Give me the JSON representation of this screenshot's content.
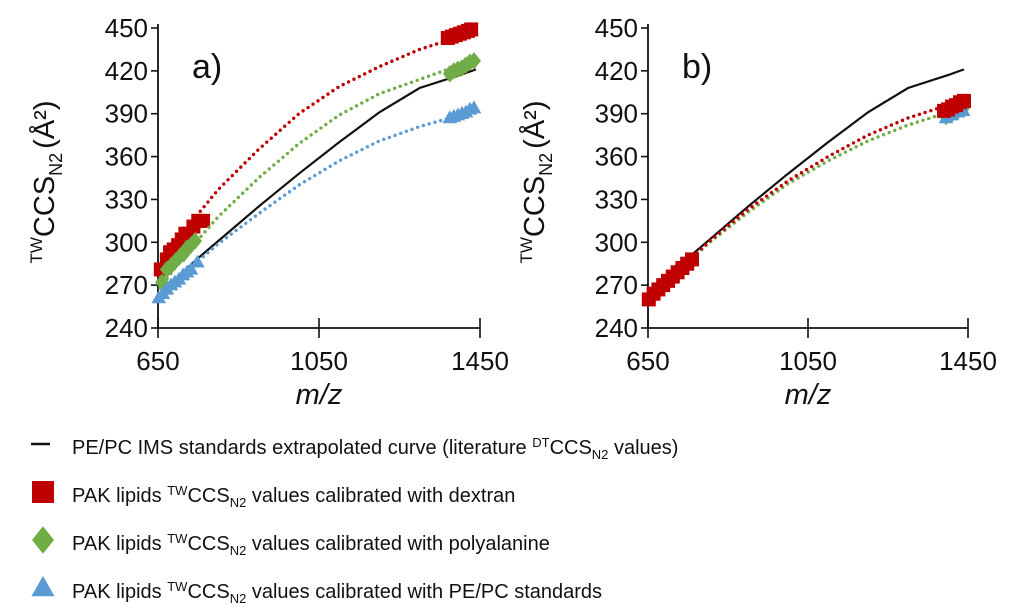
{
  "chart_data": [
    {
      "panel_label": "a)",
      "type": "scatter",
      "ylabel": {
        "prefix": "TW",
        "main": "CCS",
        "sub": "N2",
        "unit": "(Å²)"
      },
      "xlabel": "m/z",
      "xlim": [
        650,
        1450
      ],
      "ylim": [
        240,
        450
      ],
      "x_ticks": [
        650,
        1050,
        1450
      ],
      "y_ticks": [
        240,
        270,
        300,
        330,
        360,
        390,
        420,
        450
      ],
      "series": [
        {
          "name": "PE/PC IMS standards extrapolated curve (literature DTCCSN2 values)",
          "kind": "line",
          "color": "#111111",
          "x": [
            650,
            700,
            750,
            800,
            900,
            1000,
            1100,
            1200,
            1300,
            1400,
            1440
          ],
          "y": [
            263,
            276,
            289,
            301,
            325,
            348,
            370,
            391,
            408,
            417,
            421
          ]
        },
        {
          "name": "PAK lipids TWCCSN2 values calibrated with dextran",
          "kind": "markers",
          "marker": "square",
          "color": "#c00000",
          "x": [
            657,
            672,
            680,
            689,
            700,
            709,
            718,
            726,
            738,
            750,
            762,
            1370,
            1380,
            1390,
            1400,
            1410,
            1420,
            1428
          ],
          "y": [
            281,
            288,
            293,
            295,
            298,
            302,
            306,
            306,
            311,
            315,
            315,
            443,
            444,
            445,
            446,
            447,
            448,
            449
          ]
        },
        {
          "name": "PAK lipids TWCCSN2 values calibrated with dextran",
          "kind": "trend",
          "color": "#c00000",
          "x": [
            655,
            700,
            750,
            800,
            900,
            1000,
            1100,
            1200,
            1300,
            1400,
            1430
          ],
          "y": [
            280,
            300,
            320,
            337,
            365,
            390,
            409,
            423,
            435,
            444,
            447
          ]
        },
        {
          "name": "PAK lipids TWCCSN2 values calibrated with polyalanine",
          "kind": "markers",
          "marker": "diamond",
          "color": "#70ad47",
          "x": [
            660,
            672,
            684,
            694,
            704,
            714,
            722,
            732,
            742,
            1375,
            1385,
            1395,
            1405,
            1415,
            1425,
            1435
          ],
          "y": [
            272,
            281,
            284,
            287,
            290,
            292,
            296,
            298,
            301,
            418,
            420,
            421,
            422,
            424,
            426,
            427
          ]
        },
        {
          "name": "PAK lipids TWCCSN2 values calibrated with polyalanine",
          "kind": "trend",
          "color": "#70ad47",
          "x": [
            655,
            700,
            750,
            800,
            900,
            1000,
            1100,
            1200,
            1300,
            1400,
            1435
          ],
          "y": [
            268,
            285,
            302,
            318,
            345,
            369,
            389,
            404,
            414,
            424,
            427
          ]
        },
        {
          "name": "PAK lipids TWCCSN2 values calibrated with PE/PC standards",
          "kind": "markers",
          "marker": "triangle",
          "color": "#5b9bd5",
          "x": [
            652,
            662,
            672,
            682,
            692,
            702,
            712,
            722,
            732,
            748,
            1375,
            1385,
            1395,
            1405,
            1415,
            1425,
            1435
          ],
          "y": [
            261,
            264,
            267,
            270,
            272,
            274,
            277,
            279,
            281,
            286,
            387,
            388,
            389,
            390,
            391,
            393,
            394
          ]
        },
        {
          "name": "PAK lipids TWCCSN2 values calibrated with PE/PC standards",
          "kind": "trend",
          "color": "#5b9bd5",
          "x": [
            655,
            700,
            750,
            800,
            900,
            1000,
            1100,
            1200,
            1300,
            1400,
            1435
          ],
          "y": [
            261,
            275,
            287,
            299,
            320,
            340,
            357,
            371,
            381,
            389,
            393
          ]
        }
      ]
    },
    {
      "panel_label": "b)",
      "type": "scatter",
      "ylabel": {
        "prefix": "TW",
        "main": "CCS",
        "sub": "N2",
        "unit": "(Å²)"
      },
      "xlabel": "m/z",
      "xlim": [
        650,
        1450
      ],
      "ylim": [
        240,
        450
      ],
      "x_ticks": [
        650,
        1050,
        1450
      ],
      "y_ticks": [
        240,
        270,
        300,
        330,
        360,
        390,
        420,
        450
      ],
      "series": [
        {
          "name": "PE/PC IMS standards extrapolated curve (literature DTCCSN2 values)",
          "kind": "line",
          "color": "#111111",
          "x": [
            650,
            700,
            750,
            800,
            900,
            1000,
            1100,
            1200,
            1300,
            1400,
            1440
          ],
          "y": [
            263,
            276,
            289,
            301,
            325,
            348,
            370,
            391,
            408,
            417,
            421
          ]
        },
        {
          "name": "PAK lipids TWCCSN2 values calibrated with polyalanine",
          "kind": "markers",
          "marker": "diamond",
          "color": "#70ad47",
          "x": [
            660,
            680,
            700,
            720,
            740,
            1395,
            1410,
            1425,
            1438
          ],
          "y": [
            263,
            268,
            274,
            279,
            284,
            388,
            390,
            392,
            394
          ]
        },
        {
          "name": "PAK lipids TWCCSN2 values calibrated with polyalanine",
          "kind": "trend",
          "color": "#70ad47",
          "x": [
            655,
            700,
            800,
            900,
            1000,
            1100,
            1200,
            1300,
            1400,
            1440
          ],
          "y": [
            260,
            273,
            299,
            321,
            341,
            357,
            371,
            382,
            391,
            395
          ]
        },
        {
          "name": "PAK lipids TWCCSN2 values calibrated with PE/PC standards",
          "kind": "markers",
          "marker": "triangle",
          "color": "#5b9bd5",
          "x": [
            1395,
            1410,
            1425,
            1438
          ],
          "y": [
            387,
            389,
            391,
            392
          ]
        },
        {
          "name": "PAK lipids TWCCSN2 values calibrated with dextran",
          "kind": "markers",
          "marker": "square",
          "color": "#c00000",
          "x": [
            652,
            664,
            676,
            688,
            700,
            712,
            724,
            736,
            748,
            760,
            1390,
            1400,
            1410,
            1420,
            1430,
            1440
          ],
          "y": [
            260,
            264,
            267,
            270,
            273,
            276,
            279,
            282,
            285,
            288,
            392,
            393,
            395,
            396,
            398,
            399
          ]
        },
        {
          "name": "PAK lipids TWCCSN2 values calibrated with dextran",
          "kind": "trend",
          "color": "#c00000",
          "x": [
            655,
            700,
            800,
            900,
            1000,
            1100,
            1200,
            1300,
            1400,
            1440
          ],
          "y": [
            260,
            273,
            300,
            323,
            343,
            360,
            375,
            387,
            396,
            400
          ]
        }
      ]
    }
  ],
  "legend": [
    {
      "marker": "line",
      "color": "#111111",
      "before": "PE/PC IMS standards extrapolated curve (literature ",
      "sup": "DT",
      "mid": "CCS",
      "sub": "N2",
      "after": " values)"
    },
    {
      "marker": "square",
      "color": "#c00000",
      "before": "PAK lipids ",
      "sup": "TW",
      "mid": "CCS",
      "sub": "N2",
      "after": " values calibrated with dextran"
    },
    {
      "marker": "diamond",
      "color": "#70ad47",
      "before": "PAK lipids ",
      "sup": "TW",
      "mid": "CCS",
      "sub": "N2",
      "after": " values calibrated with polyalanine"
    },
    {
      "marker": "triangle",
      "color": "#5b9bd5",
      "before": "PAK lipids ",
      "sup": "TW",
      "mid": "CCS",
      "sub": "N2",
      "after": " values calibrated with PE/PC standards"
    }
  ]
}
